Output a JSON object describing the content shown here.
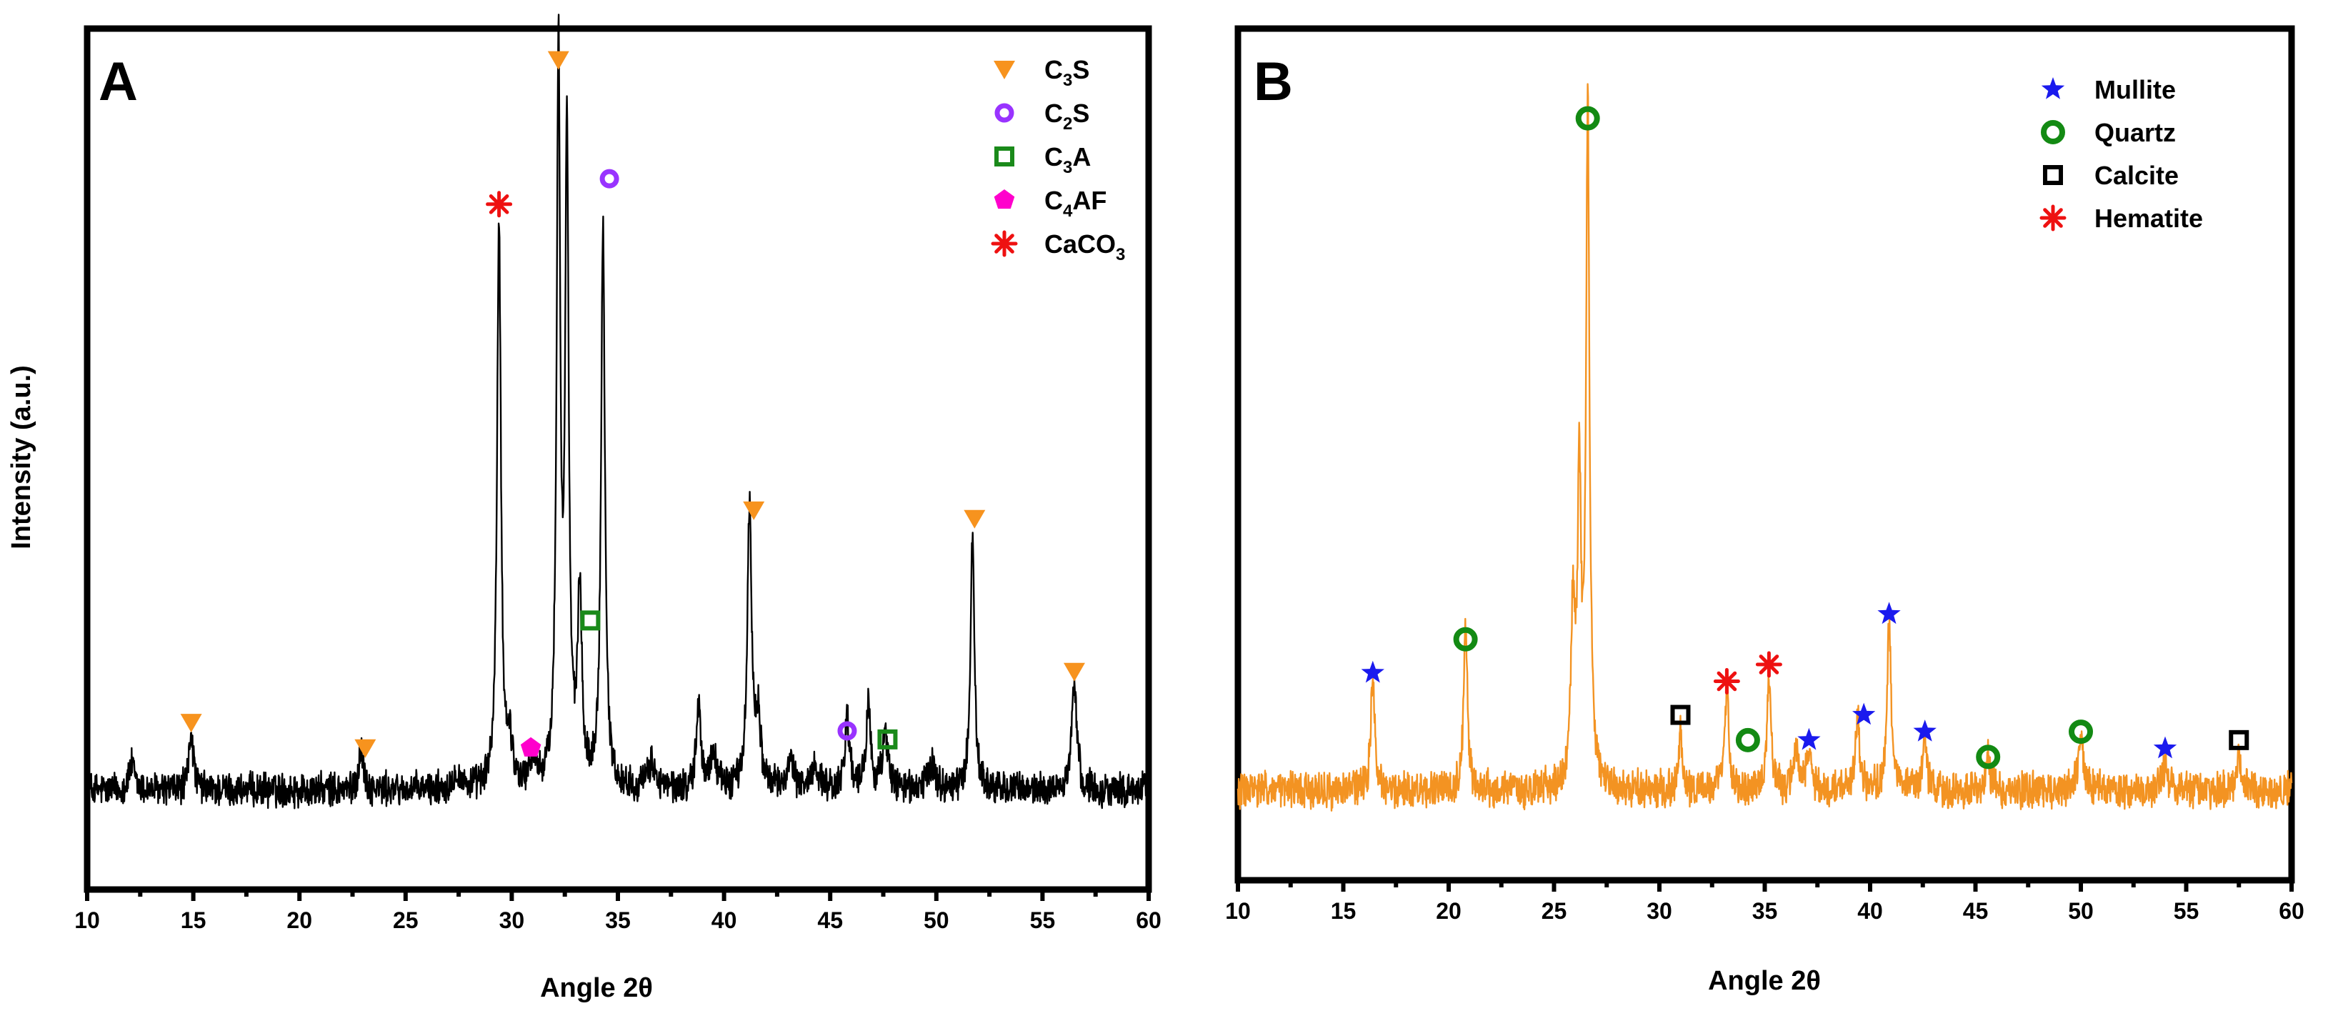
{
  "figure": {
    "y_axis_label": "Intensity (a.u.)"
  },
  "colors": {
    "panel_a_line": "#000000",
    "panel_b_line": "#f39322",
    "c3s": "#f7931e",
    "c2s": "#9933ff",
    "c3a": "#1a8a1a",
    "c4af": "#ff00cc",
    "caco3": "#ee1111",
    "mullite": "#1a1aee",
    "quartz": "#138a13",
    "calcite": "#000000",
    "hematite": "#ee1111"
  },
  "chart_data": [
    {
      "type": "line",
      "panel": "A",
      "xlabel": "Angle 2θ",
      "ylabel": "Intensity (a.u.)",
      "xlim": [
        10,
        60
      ],
      "ylim": [
        0,
        100
      ],
      "xticks": [
        "10",
        "15",
        "20",
        "25",
        "30",
        "35",
        "40",
        "45",
        "50",
        "55",
        "60"
      ],
      "baseline": 11,
      "noise": 1.1,
      "peaks": [
        {
          "x": 12.1,
          "h": 3,
          "w": 0.15
        },
        {
          "x": 14.9,
          "h": 7,
          "w": 0.12
        },
        {
          "x": 22.9,
          "h": 5,
          "w": 0.12
        },
        {
          "x": 27.4,
          "h": 2,
          "w": 0.2
        },
        {
          "x": 29.4,
          "h": 66,
          "w": 0.11
        },
        {
          "x": 29.9,
          "h": 5,
          "w": 0.15
        },
        {
          "x": 31.0,
          "h": 3,
          "w": 0.2
        },
        {
          "x": 32.2,
          "h": 86,
          "w": 0.1
        },
        {
          "x": 32.6,
          "h": 75,
          "w": 0.1
        },
        {
          "x": 33.2,
          "h": 22,
          "w": 0.12
        },
        {
          "x": 34.3,
          "h": 66,
          "w": 0.11
        },
        {
          "x": 36.6,
          "h": 3,
          "w": 0.2
        },
        {
          "x": 38.8,
          "h": 10,
          "w": 0.12
        },
        {
          "x": 39.5,
          "h": 4,
          "w": 0.2
        },
        {
          "x": 41.2,
          "h": 33,
          "w": 0.12
        },
        {
          "x": 41.6,
          "h": 8,
          "w": 0.15
        },
        {
          "x": 43.1,
          "h": 3,
          "w": 0.2
        },
        {
          "x": 44.3,
          "h": 3,
          "w": 0.2
        },
        {
          "x": 45.8,
          "h": 9,
          "w": 0.12
        },
        {
          "x": 46.8,
          "h": 10,
          "w": 0.12
        },
        {
          "x": 47.6,
          "h": 6,
          "w": 0.18
        },
        {
          "x": 49.8,
          "h": 3,
          "w": 0.2
        },
        {
          "x": 51.7,
          "h": 30,
          "w": 0.11
        },
        {
          "x": 56.5,
          "h": 13,
          "w": 0.14
        },
        {
          "x": 60.0,
          "h": 3,
          "w": 0.1
        }
      ],
      "markers": [
        {
          "phase": "C3S",
          "x": 14.9,
          "y": 19
        },
        {
          "phase": "C3S",
          "x": 23.1,
          "y": 16
        },
        {
          "phase": "C3S",
          "x": 32.2,
          "y": 97
        },
        {
          "phase": "C3S",
          "x": 41.4,
          "y": 44
        },
        {
          "phase": "C3S",
          "x": 51.8,
          "y": 43
        },
        {
          "phase": "C3S",
          "x": 56.5,
          "y": 25
        },
        {
          "phase": "C2S",
          "x": 34.6,
          "y": 83
        },
        {
          "phase": "C2S",
          "x": 45.8,
          "y": 18
        },
        {
          "phase": "C3A",
          "x": 33.7,
          "y": 31
        },
        {
          "phase": "C3A",
          "x": 47.7,
          "y": 17
        },
        {
          "phase": "C4AF",
          "x": 30.9,
          "y": 16
        },
        {
          "phase": "CaCO3",
          "x": 29.4,
          "y": 80
        }
      ],
      "legend": [
        {
          "key": "C3S",
          "label_main": "C",
          "label_sub": "3",
          "label_rest": "S",
          "shape": "triangle-down"
        },
        {
          "key": "C2S",
          "label_main": "C",
          "label_sub": "2",
          "label_rest": "S",
          "shape": "ring"
        },
        {
          "key": "C3A",
          "label_main": "C",
          "label_sub": "3",
          "label_rest": "A",
          "shape": "square"
        },
        {
          "key": "C4AF",
          "label_main": "C",
          "label_sub": "4",
          "label_rest": "AF",
          "shape": "pentagon"
        },
        {
          "key": "CaCO3",
          "label_main": "CaCO",
          "label_sub": "3",
          "label_rest": "",
          "shape": "asterisk"
        }
      ],
      "legend_position": "top-right"
    },
    {
      "type": "line",
      "panel": "B",
      "xlabel": "Angle 2θ",
      "ylabel": "Intensity (a.u.)",
      "xlim": [
        10,
        60
      ],
      "ylim": [
        0,
        100
      ],
      "xticks": [
        "10",
        "15",
        "20",
        "25",
        "30",
        "35",
        "40",
        "45",
        "50",
        "55",
        "60"
      ],
      "baseline": 10,
      "noise": 1.2,
      "peaks": [
        {
          "x": 16.4,
          "h": 13,
          "w": 0.11
        },
        {
          "x": 20.8,
          "h": 19,
          "w": 0.11
        },
        {
          "x": 25.9,
          "h": 20,
          "w": 0.12
        },
        {
          "x": 26.2,
          "h": 35,
          "w": 0.1
        },
        {
          "x": 26.6,
          "h": 80,
          "w": 0.1
        },
        {
          "x": 31.0,
          "h": 7,
          "w": 0.1
        },
        {
          "x": 33.2,
          "h": 13,
          "w": 0.11
        },
        {
          "x": 35.2,
          "h": 14,
          "w": 0.11
        },
        {
          "x": 36.5,
          "h": 4,
          "w": 0.15
        },
        {
          "x": 37.1,
          "h": 4,
          "w": 0.15
        },
        {
          "x": 39.4,
          "h": 9,
          "w": 0.12
        },
        {
          "x": 40.9,
          "h": 20,
          "w": 0.11
        },
        {
          "x": 42.6,
          "h": 5,
          "w": 0.12
        },
        {
          "x": 45.6,
          "h": 4,
          "w": 0.12
        },
        {
          "x": 50.0,
          "h": 6,
          "w": 0.15
        },
        {
          "x": 54.0,
          "h": 3,
          "w": 0.15
        },
        {
          "x": 57.5,
          "h": 4,
          "w": 0.12
        }
      ],
      "markers": [
        {
          "phase": "Mullite",
          "x": 16.4,
          "y": 24
        },
        {
          "phase": "Mullite",
          "x": 37.1,
          "y": 16
        },
        {
          "phase": "Mullite",
          "x": 39.7,
          "y": 19
        },
        {
          "phase": "Mullite",
          "x": 40.9,
          "y": 31
        },
        {
          "phase": "Mullite",
          "x": 42.6,
          "y": 17
        },
        {
          "phase": "Mullite",
          "x": 54.0,
          "y": 15
        },
        {
          "phase": "Quartz",
          "x": 20.8,
          "y": 28
        },
        {
          "phase": "Quartz",
          "x": 26.6,
          "y": 90
        },
        {
          "phase": "Quartz",
          "x": 34.2,
          "y": 16
        },
        {
          "phase": "Quartz",
          "x": 45.6,
          "y": 14
        },
        {
          "phase": "Quartz",
          "x": 50.0,
          "y": 17
        },
        {
          "phase": "Calcite",
          "x": 31.0,
          "y": 19
        },
        {
          "phase": "Calcite",
          "x": 57.5,
          "y": 16
        },
        {
          "phase": "Hematite",
          "x": 33.2,
          "y": 23
        },
        {
          "phase": "Hematite",
          "x": 35.2,
          "y": 25
        }
      ],
      "legend": [
        {
          "key": "Mullite",
          "label_main": "Mullite",
          "label_sub": "",
          "label_rest": "",
          "shape": "star"
        },
        {
          "key": "Quartz",
          "label_main": "Quartz",
          "label_sub": "",
          "label_rest": "",
          "shape": "ring-thick"
        },
        {
          "key": "Calcite",
          "label_main": "Calcite",
          "label_sub": "",
          "label_rest": "",
          "shape": "square-black"
        },
        {
          "key": "Hematite",
          "label_main": "Hematite",
          "label_sub": "",
          "label_rest": "",
          "shape": "asterisk"
        }
      ],
      "legend_position": "top-right"
    }
  ]
}
